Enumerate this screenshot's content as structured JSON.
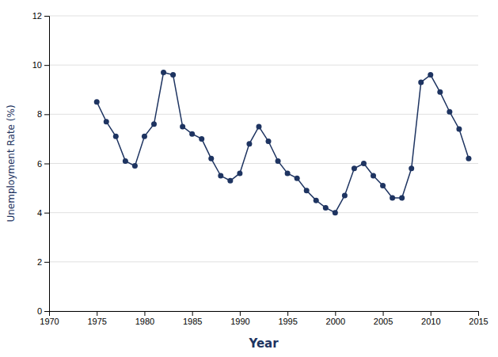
{
  "chart_data": {
    "type": "line",
    "x": [
      1975,
      1976,
      1977,
      1978,
      1979,
      1980,
      1981,
      1982,
      1983,
      1984,
      1985,
      1986,
      1987,
      1988,
      1989,
      1990,
      1991,
      1992,
      1993,
      1994,
      1995,
      1996,
      1997,
      1998,
      1999,
      2000,
      2001,
      2002,
      2003,
      2004,
      2005,
      2006,
      2007,
      2008,
      2009,
      2010,
      2011,
      2012,
      2013,
      2014
    ],
    "values": [
      8.5,
      7.7,
      7.1,
      6.1,
      5.9,
      7.1,
      7.6,
      9.7,
      9.6,
      7.5,
      7.2,
      7.0,
      6.2,
      5.5,
      5.3,
      5.6,
      6.8,
      7.5,
      6.9,
      6.1,
      5.6,
      5.4,
      4.9,
      4.5,
      4.2,
      4.0,
      4.7,
      5.8,
      6.0,
      5.5,
      5.1,
      4.6,
      4.6,
      5.8,
      9.3,
      9.6,
      8.9,
      8.1,
      7.4,
      6.2
    ],
    "color": "#1e3461",
    "marker": "circle",
    "xlabel": "Year",
    "ylabel": "Unemployment Rate (%)",
    "xlim": [
      1970,
      2015
    ],
    "ylim": [
      0,
      12
    ],
    "xticks": [
      1970,
      1975,
      1980,
      1985,
      1990,
      1995,
      2000,
      2005,
      2010,
      2015
    ],
    "yticks": [
      0,
      2,
      4,
      6,
      8,
      10,
      12
    ],
    "grid": true
  }
}
